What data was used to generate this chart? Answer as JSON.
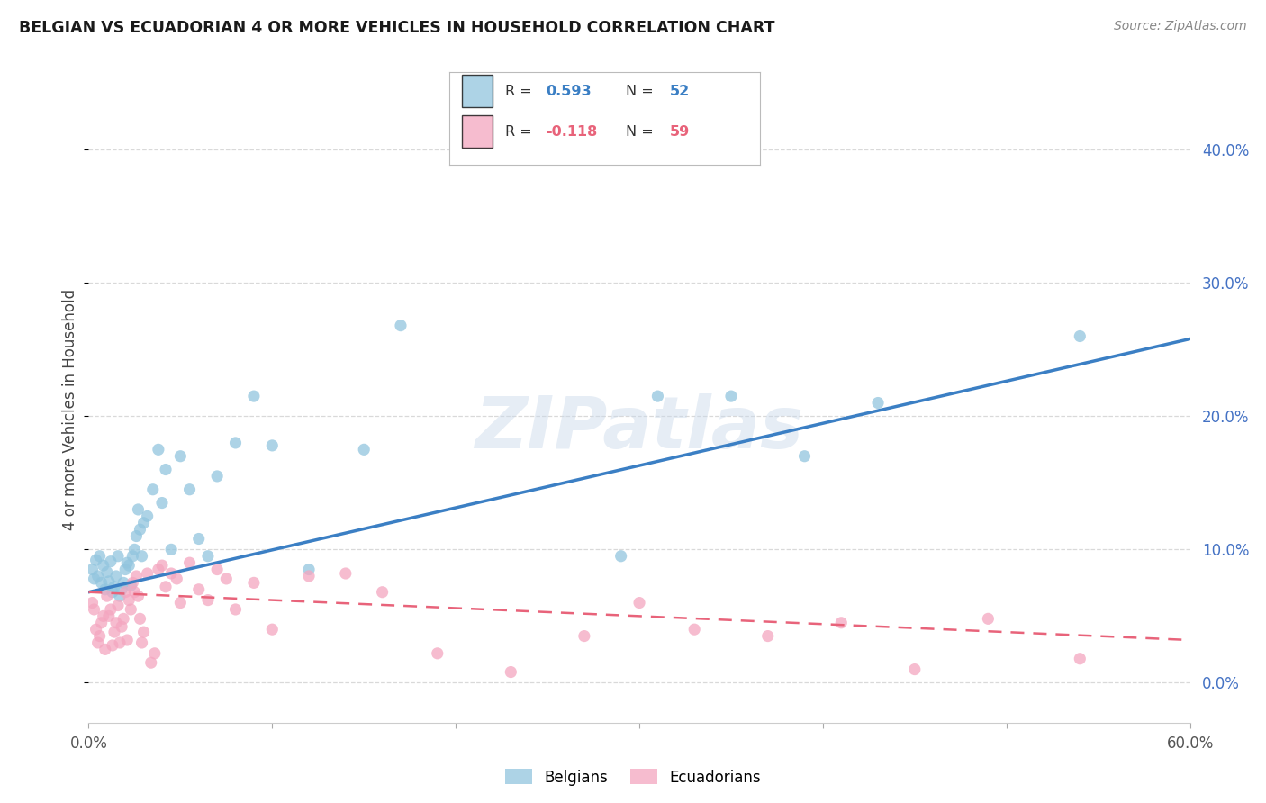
{
  "title": "BELGIAN VS ECUADORIAN 4 OR MORE VEHICLES IN HOUSEHOLD CORRELATION CHART",
  "source": "Source: ZipAtlas.com",
  "ylabel_text": "4 or more Vehicles in Household",
  "xlim": [
    0.0,
    0.6
  ],
  "ylim": [
    -0.03,
    0.44
  ],
  "xticks": [
    0.0,
    0.1,
    0.2,
    0.3,
    0.4,
    0.5,
    0.6
  ],
  "xticklabels": [
    "0.0%",
    "",
    "",
    "",
    "",
    "",
    "60.0%"
  ],
  "yticks": [
    0.0,
    0.1,
    0.2,
    0.3,
    0.4
  ],
  "yticklabels": [
    "0.0%",
    "10.0%",
    "20.0%",
    "30.0%",
    "40.0%"
  ],
  "belgian_color": "#92c5de",
  "ecuadorian_color": "#f4a6c0",
  "belgian_line_color": "#3b7fc4",
  "ecuadorian_line_color": "#e8637a",
  "belgian_R": 0.593,
  "belgian_N": 52,
  "ecuadorian_R": -0.118,
  "ecuadorian_N": 59,
  "watermark": "ZIPatlas",
  "background_color": "#ffffff",
  "grid_color": "#d9d9d9",
  "right_ytick_color": "#4472c4",
  "belgian_x": [
    0.002,
    0.003,
    0.004,
    0.005,
    0.006,
    0.007,
    0.008,
    0.009,
    0.01,
    0.011,
    0.012,
    0.013,
    0.014,
    0.015,
    0.016,
    0.017,
    0.018,
    0.019,
    0.02,
    0.021,
    0.022,
    0.023,
    0.024,
    0.025,
    0.026,
    0.027,
    0.028,
    0.029,
    0.03,
    0.032,
    0.035,
    0.038,
    0.04,
    0.042,
    0.045,
    0.05,
    0.055,
    0.06,
    0.065,
    0.07,
    0.08,
    0.09,
    0.1,
    0.12,
    0.15,
    0.17,
    0.29,
    0.31,
    0.35,
    0.39,
    0.43,
    0.54
  ],
  "belgian_y": [
    0.085,
    0.078,
    0.092,
    0.08,
    0.095,
    0.075,
    0.088,
    0.07,
    0.083,
    0.076,
    0.091,
    0.068,
    0.072,
    0.08,
    0.095,
    0.065,
    0.07,
    0.075,
    0.085,
    0.09,
    0.088,
    0.073,
    0.095,
    0.1,
    0.11,
    0.13,
    0.115,
    0.095,
    0.12,
    0.125,
    0.145,
    0.175,
    0.135,
    0.16,
    0.1,
    0.17,
    0.145,
    0.108,
    0.095,
    0.155,
    0.18,
    0.215,
    0.178,
    0.085,
    0.175,
    0.268,
    0.095,
    0.215,
    0.215,
    0.17,
    0.21,
    0.26
  ],
  "ecuadorian_x": [
    0.002,
    0.003,
    0.004,
    0.005,
    0.006,
    0.007,
    0.008,
    0.009,
    0.01,
    0.011,
    0.012,
    0.013,
    0.014,
    0.015,
    0.016,
    0.017,
    0.018,
    0.019,
    0.02,
    0.021,
    0.022,
    0.023,
    0.024,
    0.025,
    0.026,
    0.027,
    0.028,
    0.029,
    0.03,
    0.032,
    0.034,
    0.036,
    0.038,
    0.04,
    0.042,
    0.045,
    0.048,
    0.05,
    0.055,
    0.06,
    0.065,
    0.07,
    0.075,
    0.08,
    0.09,
    0.1,
    0.12,
    0.14,
    0.16,
    0.19,
    0.23,
    0.27,
    0.3,
    0.33,
    0.37,
    0.41,
    0.45,
    0.49,
    0.54
  ],
  "ecuadorian_y": [
    0.06,
    0.055,
    0.04,
    0.03,
    0.035,
    0.045,
    0.05,
    0.025,
    0.065,
    0.05,
    0.055,
    0.028,
    0.038,
    0.045,
    0.058,
    0.03,
    0.042,
    0.048,
    0.068,
    0.032,
    0.062,
    0.055,
    0.075,
    0.068,
    0.08,
    0.065,
    0.048,
    0.03,
    0.038,
    0.082,
    0.015,
    0.022,
    0.085,
    0.088,
    0.072,
    0.082,
    0.078,
    0.06,
    0.09,
    0.07,
    0.062,
    0.085,
    0.078,
    0.055,
    0.075,
    0.04,
    0.08,
    0.082,
    0.068,
    0.022,
    0.008,
    0.035,
    0.06,
    0.04,
    0.035,
    0.045,
    0.01,
    0.048,
    0.018
  ],
  "bel_line_x0": 0.0,
  "bel_line_x1": 0.6,
  "bel_line_y0": 0.068,
  "bel_line_y1": 0.258,
  "ecu_line_x0": 0.0,
  "ecu_line_x1": 0.6,
  "ecu_line_y0": 0.068,
  "ecu_line_y1": 0.032
}
